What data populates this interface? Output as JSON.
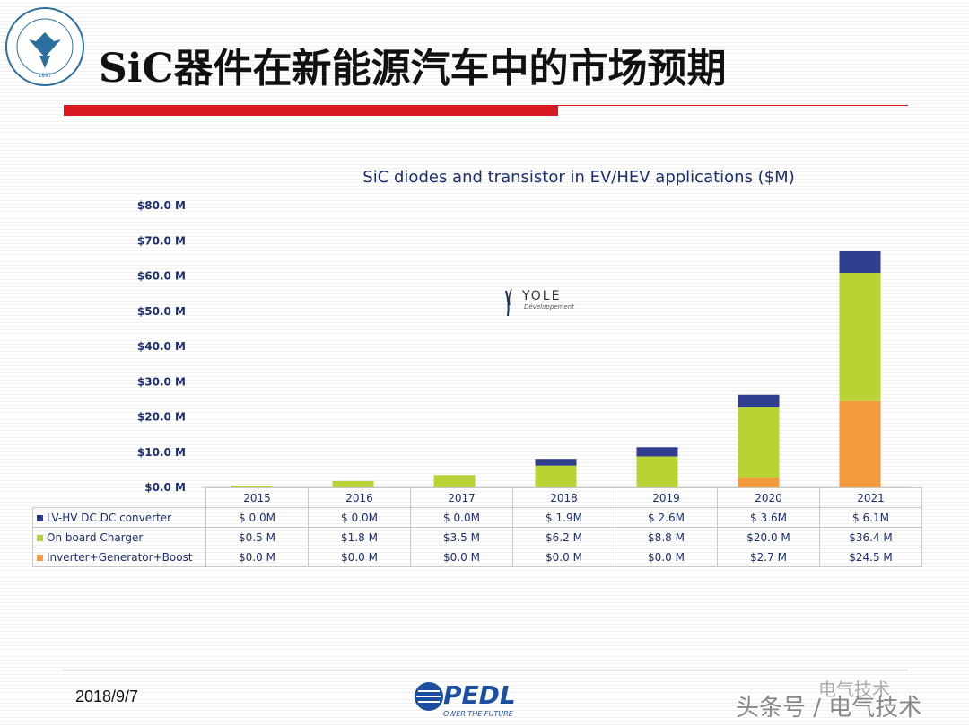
{
  "slide": {
    "title": "SiC器件在新能源汽车中的市场预期",
    "date": "2018/9/7",
    "footer_logo_text": "PEDL",
    "footer_logo_tagline": "OWER THE FUTURE",
    "watermark_small": "电气技术",
    "watermark_large": "头条号 / 电气技术",
    "university_logo_text": "ZHEJIANG UNIVERSITY",
    "university_logo_year": "1897",
    "chart_logo_text": "YOLE",
    "chart_logo_sub": "Développement"
  },
  "chart_data": {
    "type": "bar",
    "stacked": true,
    "title": "SiC diodes and transistor in EV/HEV applications ($M)",
    "categories": [
      "2015",
      "2016",
      "2017",
      "2018",
      "2019",
      "2020",
      "2021"
    ],
    "ylim": [
      0,
      80
    ],
    "yticks": [
      "$0.0 M",
      "$10.0 M",
      "$20.0 M",
      "$30.0 M",
      "$40.0 M",
      "$50.0 M",
      "$60.0 M",
      "$70.0 M",
      "$80.0 M"
    ],
    "ytick_values": [
      0,
      10,
      20,
      30,
      40,
      50,
      60,
      70,
      80
    ],
    "grid": false,
    "series": [
      {
        "name": "Inverter+Generator+Boost",
        "color": "#f39a3c",
        "values": [
          0,
          0,
          0,
          0,
          0,
          2.7,
          24.5
        ],
        "labels": [
          "$0.0 M",
          "$0.0 M",
          "$0.0 M",
          "$0.0 M",
          "$0.0 M",
          "$2.7 M",
          "$24.5 M"
        ]
      },
      {
        "name": "On board Charger",
        "color": "#b8d334",
        "values": [
          0.5,
          1.8,
          3.5,
          6.2,
          8.8,
          20.0,
          36.4
        ],
        "labels": [
          "$0.5 M",
          "$1.8 M",
          "$3.5 M",
          "$6.2 M",
          "$8.8 M",
          "$20.0 M",
          "$36.4 M"
        ]
      },
      {
        "name": "LV-HV DC DC converter",
        "color": "#2f3e8f",
        "values": [
          0.0,
          0.0,
          0.0,
          1.9,
          2.6,
          3.6,
          6.1
        ],
        "labels": [
          "$ 0.0M",
          "$ 0.0M",
          "$ 0.0M",
          "$ 1.9M",
          "$ 2.6M",
          "$ 3.6M",
          "$ 6.1M"
        ]
      }
    ],
    "table_row_order": [
      "LV-HV DC DC converter",
      "On board Charger",
      "Inverter+Generator+Boost"
    ]
  }
}
